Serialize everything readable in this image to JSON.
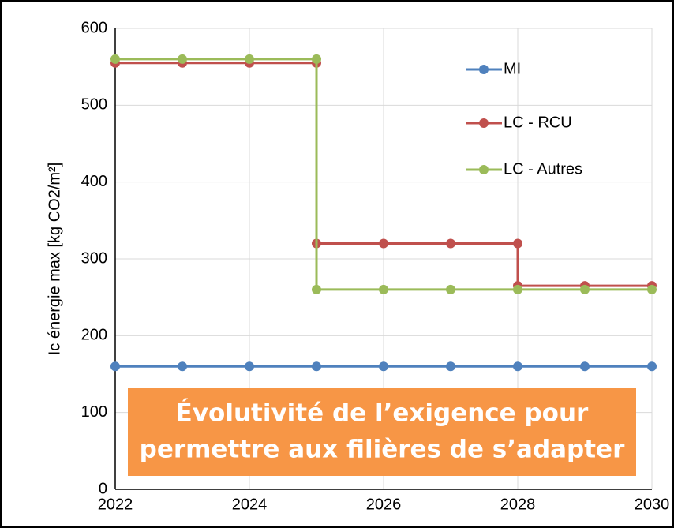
{
  "chart_data": {
    "type": "line",
    "y_label": "Ic énergie max [kg CO2/m²]",
    "annotation": [
      "Évolutivité de l’exigence pour",
      "permettre aux filières de s’adapter"
    ],
    "xlim": [
      2022,
      2030
    ],
    "xticks": [
      2022,
      2024,
      2026,
      2028,
      2030
    ],
    "ylim": [
      0,
      600
    ],
    "yticks": [
      0,
      100,
      200,
      300,
      400,
      500,
      600
    ],
    "grid": true,
    "legend": "upper right",
    "series": [
      {
        "name": "MI",
        "color": "#4f81bd",
        "x": [
          2022,
          2023,
          2024,
          2025,
          2026,
          2027,
          2028,
          2029,
          2030
        ],
        "values": [
          160,
          160,
          160,
          160,
          160,
          160,
          160,
          160,
          160
        ]
      },
      {
        "name": "LC - RCU",
        "color": "#c0504d",
        "x": [
          2022,
          2023,
          2024,
          2025,
          2025,
          2026,
          2027,
          2028,
          2028,
          2029,
          2030
        ],
        "values": [
          555,
          555,
          555,
          555,
          320,
          320,
          320,
          320,
          265,
          265,
          265
        ]
      },
      {
        "name": "LC - Autres",
        "color": "#9bbb59",
        "x": [
          2022,
          2023,
          2024,
          2025,
          2025,
          2026,
          2027,
          2028,
          2029,
          2030
        ],
        "values": [
          560,
          560,
          560,
          560,
          260,
          260,
          260,
          260,
          260,
          260
        ]
      }
    ]
  }
}
